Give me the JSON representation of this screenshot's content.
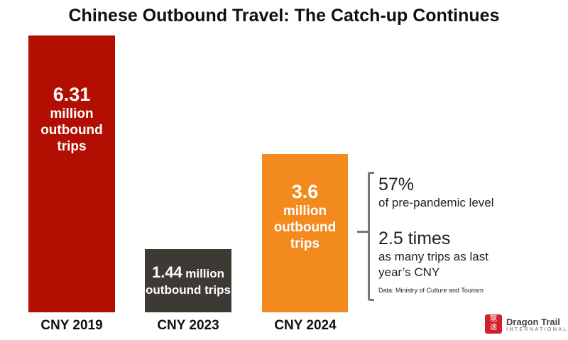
{
  "chart_data": {
    "type": "bar",
    "title": "Chinese Outbound Travel: The Catch-up Continues",
    "categories": [
      "CNY 2019",
      "CNY 2023",
      "CNY 2024"
    ],
    "values": [
      6.31,
      1.44,
      3.6
    ],
    "unit": "million outbound trips",
    "ylim": [
      0,
      6.31
    ],
    "colors": [
      "#b30e02",
      "#3d3a35",
      "#f28a1e"
    ],
    "labels": [
      {
        "value": "6.31",
        "text": [
          "million",
          "outbound",
          "trips"
        ]
      },
      {
        "value": "1.44",
        "suffix": "million",
        "text": [
          "outbound trips"
        ]
      },
      {
        "value": "3.6",
        "text": [
          "million",
          "outbound",
          "trips"
        ]
      }
    ],
    "annotations": {
      "stat1": "57%",
      "stat1_text": "of pre-pandemic level",
      "stat2": "2.5 times",
      "stat2_text1": "as many trips as last",
      "stat2_text2": "year’s CNY",
      "source": "Data: Ministry of Culture and Tourism"
    }
  },
  "logo": {
    "name": "Dragon Trail",
    "sub": "INTERNATIONAL",
    "glyphs": "龍途"
  }
}
